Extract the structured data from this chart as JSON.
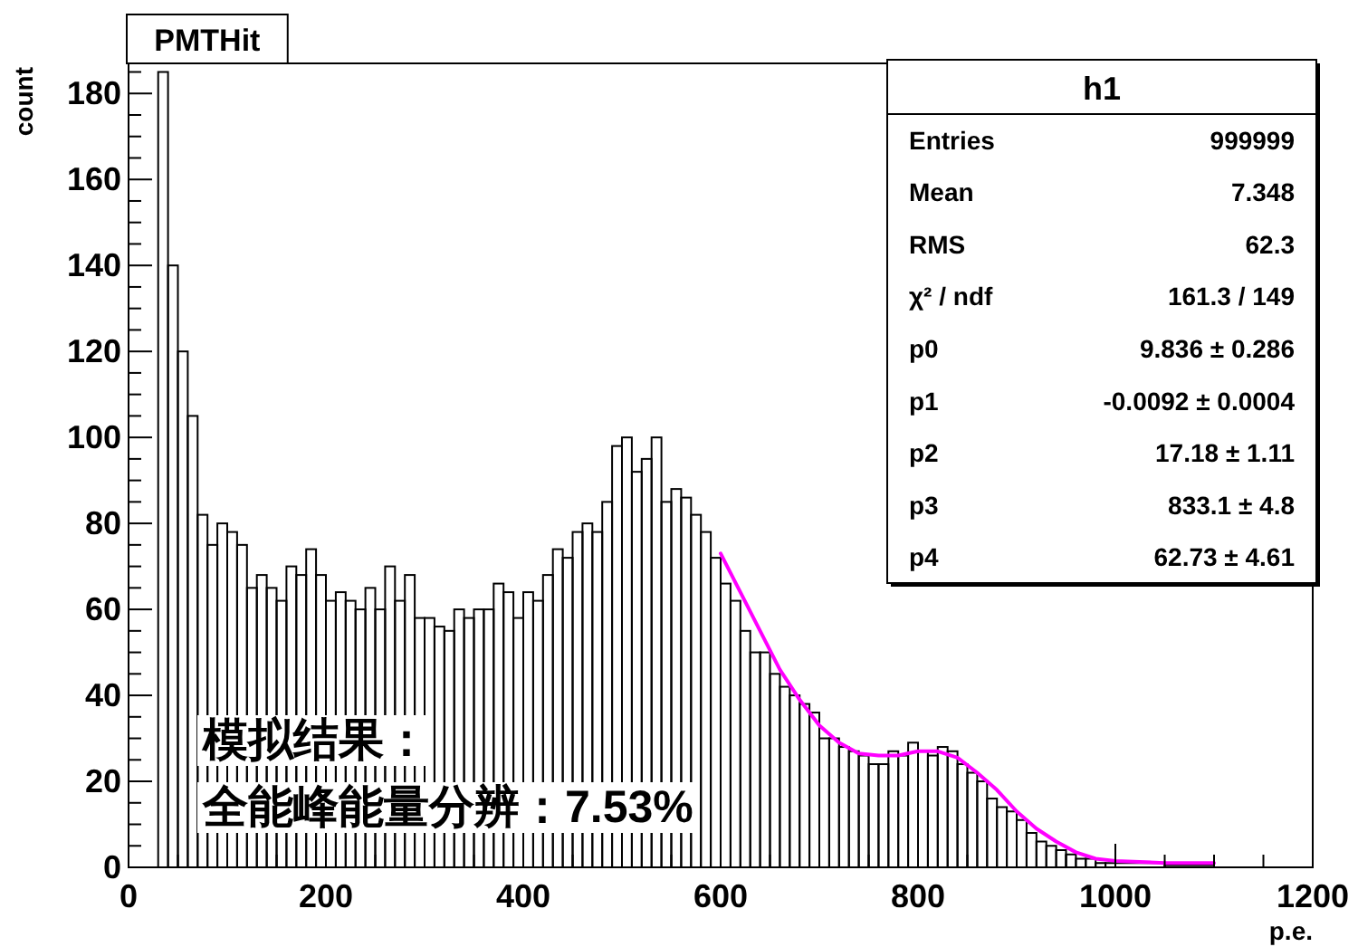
{
  "chart_data": {
    "type": "histogram",
    "title": "PMTHit",
    "xlabel": "p.e.",
    "ylabel": "count",
    "xlim": [
      0,
      1200
    ],
    "xticks": [
      0,
      200,
      400,
      600,
      800,
      1000,
      1200
    ],
    "ylim": [
      0,
      187
    ],
    "yticks": [
      0,
      20,
      40,
      60,
      80,
      100,
      120,
      140,
      160,
      180
    ],
    "grid": false,
    "series": [
      {
        "type": "histogram",
        "color": "#000000",
        "bins": [
          30,
          40,
          50,
          60,
          70,
          80,
          90,
          100,
          110,
          120,
          130,
          140,
          150,
          160,
          170,
          180,
          190,
          200,
          210,
          220,
          230,
          240,
          250,
          260,
          270,
          280,
          290,
          300,
          310,
          320,
          330,
          340,
          350,
          360,
          370,
          380,
          390,
          400,
          410,
          420,
          430,
          440,
          450,
          460,
          470,
          480,
          490,
          500,
          510,
          520,
          530,
          540,
          550,
          560,
          570,
          580,
          590,
          600,
          610,
          620,
          630,
          640,
          650,
          660,
          670,
          680,
          690,
          700,
          710,
          720,
          730,
          740,
          750,
          760,
          770,
          780,
          790,
          800,
          810,
          820,
          830,
          840,
          850,
          860,
          870,
          880,
          890,
          900,
          910,
          920,
          930,
          940,
          950,
          960,
          970,
          980,
          990,
          1000,
          1050,
          1100
        ],
        "values": [
          185,
          140,
          120,
          105,
          82,
          75,
          80,
          78,
          75,
          65,
          68,
          65,
          62,
          70,
          68,
          74,
          68,
          62,
          64,
          62,
          60,
          65,
          60,
          70,
          62,
          68,
          58,
          58,
          56,
          55,
          60,
          58,
          60,
          60,
          66,
          64,
          58,
          64,
          62,
          68,
          74,
          72,
          78,
          80,
          78,
          85,
          98,
          100,
          92,
          95,
          100,
          85,
          88,
          86,
          82,
          78,
          72,
          66,
          62,
          55,
          50,
          50,
          45,
          42,
          40,
          38,
          36,
          30,
          30,
          28,
          27,
          26,
          24,
          24,
          27,
          26,
          29,
          27,
          26,
          28,
          27,
          24,
          22,
          20,
          16,
          14,
          13,
          11,
          8,
          6,
          5,
          4,
          3,
          2,
          2,
          1,
          1,
          1,
          0.5
        ]
      },
      {
        "type": "line",
        "color": "#ff00ff",
        "x": [
          600,
          620,
          640,
          660,
          680,
          700,
          720,
          740,
          760,
          780,
          800,
          820,
          840,
          860,
          880,
          900,
          920,
          940,
          960,
          980,
          1000,
          1050,
          1100
        ],
        "values": [
          73,
          64,
          55,
          46,
          39,
          33,
          29,
          26.5,
          26,
          26,
          27,
          27,
          25.5,
          22,
          18,
          13,
          9,
          6,
          3.5,
          2,
          1.5,
          1,
          1
        ]
      }
    ],
    "annotations": [
      "h1",
      "Entries",
      "999999",
      "Mean",
      "7.348",
      "RMS",
      "62.3",
      "χ² / ndf",
      "161.3 / 149",
      "p0",
      "9.836 ± 0.286",
      "p1",
      "-0.0092 ± 0.0004",
      "p2",
      "17.18 ± 1.11",
      "p3",
      "833.1 ± 4.8",
      "p4",
      "62.73 ± 4.61",
      "模拟结果：",
      "全能峰能量分辨：7.53%"
    ]
  }
}
